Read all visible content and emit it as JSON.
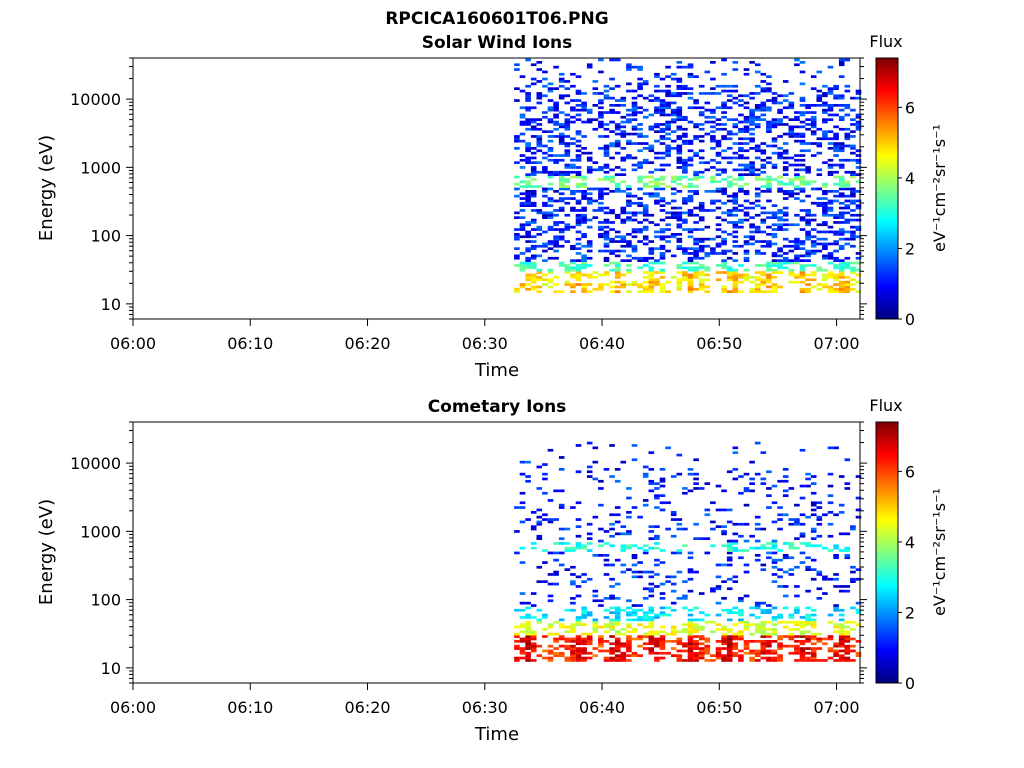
{
  "figure": {
    "title": "RPCICA160601T06.PNG"
  },
  "colors": {
    "colormap": [
      "#00007f",
      "#0000ff",
      "#0080ff",
      "#00ffff",
      "#80ff80",
      "#ffff00",
      "#ff8000",
      "#ff0000",
      "#7f0000"
    ],
    "axis": "#000000",
    "background": "#ffffff"
  },
  "chart_data": [
    {
      "type": "heatmap",
      "title": "Solar Wind Ions",
      "xlabel": "Time",
      "ylabel": "Energy (eV)",
      "x_ticks": [
        "06:00",
        "06:10",
        "06:20",
        "06:30",
        "06:40",
        "06:50",
        "07:00"
      ],
      "x_tick_minutes": [
        0,
        10,
        20,
        30,
        40,
        50,
        60
      ],
      "xlim_minutes": [
        0,
        62
      ],
      "y_scale": "log",
      "ylim": [
        6,
        40000
      ],
      "y_ticks": [
        "10",
        "100",
        "1000",
        "10000"
      ],
      "y_tick_values": [
        10,
        100,
        1000,
        10000
      ],
      "colorbar": {
        "title": "Flux",
        "label": "eV⁻¹cm⁻²sr⁻¹s⁻¹",
        "range": [
          0,
          7.4
        ],
        "ticks": [
          "0",
          "2",
          "4",
          "6"
        ],
        "tick_values": [
          0,
          2,
          4,
          6
        ]
      },
      "data_start_minute": 32.5,
      "peak_minutes": [
        33.5,
        37.8,
        41.0,
        44.2,
        47.4,
        50.6,
        53.8,
        57.0,
        60.2
      ],
      "bands": [
        {
          "energy_range": [
            14,
            30
          ],
          "flux": 4.6,
          "peak_flux": 5.2,
          "density": 0.75
        },
        {
          "energy_range": [
            30,
            42
          ],
          "flux": 3.2,
          "density": 0.7
        },
        {
          "energy_range": [
            500,
            750
          ],
          "flux": 3.6,
          "density": 0.6
        },
        {
          "energy_range": [
            42,
            40000
          ],
          "flux": 1.1,
          "density": 0.35
        }
      ]
    },
    {
      "type": "heatmap",
      "title": "Cometary Ions",
      "xlabel": "Time",
      "ylabel": "Energy (eV)",
      "x_ticks": [
        "06:00",
        "06:10",
        "06:20",
        "06:30",
        "06:40",
        "06:50",
        "07:00"
      ],
      "x_tick_minutes": [
        0,
        10,
        20,
        30,
        40,
        50,
        60
      ],
      "xlim_minutes": [
        0,
        62
      ],
      "y_scale": "log",
      "ylim": [
        6,
        40000
      ],
      "y_ticks": [
        "10",
        "100",
        "1000",
        "10000"
      ],
      "y_tick_values": [
        10,
        100,
        1000,
        10000
      ],
      "colorbar": {
        "title": "Flux",
        "label": "eV⁻¹cm⁻²sr⁻¹s⁻¹",
        "range": [
          0,
          7.4
        ],
        "ticks": [
          "0",
          "2",
          "4",
          "6"
        ],
        "tick_values": [
          0,
          2,
          4,
          6
        ]
      },
      "data_start_minute": 32.5,
      "peak_minutes": [
        33.5,
        37.8,
        41.0,
        44.2,
        47.4,
        50.6,
        53.8,
        57.0,
        60.2
      ],
      "bands": [
        {
          "energy_range": [
            12,
            30
          ],
          "flux": 6.0,
          "peak_flux": 6.8,
          "density": 0.85
        },
        {
          "energy_range": [
            30,
            50
          ],
          "flux": 4.4,
          "density": 0.75
        },
        {
          "energy_range": [
            50,
            80
          ],
          "flux": 2.6,
          "density": 0.5
        },
        {
          "energy_range": [
            500,
            700
          ],
          "flux": 3.0,
          "density": 0.45
        },
        {
          "energy_range": [
            80,
            20000
          ],
          "flux": 1.0,
          "density": 0.12
        }
      ]
    }
  ]
}
